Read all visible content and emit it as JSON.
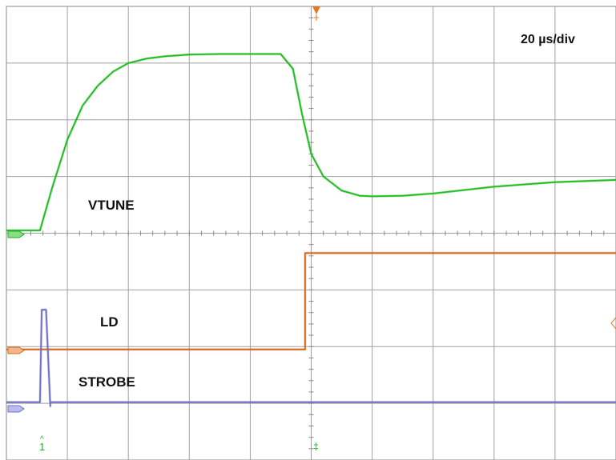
{
  "chart_data": {
    "type": "line",
    "title": "",
    "timebase": "20 µs/div",
    "grid": true,
    "x_unit": "divisions",
    "xlim": [
      0,
      10
    ],
    "ylim": [
      0,
      8
    ],
    "series": [
      {
        "name": "VTUNE",
        "color": "#22bb22",
        "x": [
          0,
          0.55,
          0.75,
          1.0,
          1.25,
          1.5,
          1.75,
          2.0,
          2.3,
          2.6,
          3.0,
          3.5,
          4.0,
          4.5,
          4.7,
          4.85,
          5.0,
          5.2,
          5.5,
          5.8,
          6.0,
          6.5,
          7.0,
          7.5,
          8.0,
          8.5,
          9.0,
          9.5,
          10.0
        ],
        "values": [
          4.05,
          4.05,
          4.8,
          5.65,
          6.25,
          6.6,
          6.85,
          7.0,
          7.08,
          7.12,
          7.15,
          7.16,
          7.16,
          7.16,
          6.9,
          6.1,
          5.4,
          5.0,
          4.75,
          4.66,
          4.65,
          4.66,
          4.7,
          4.76,
          4.82,
          4.86,
          4.9,
          4.92,
          4.94
        ]
      },
      {
        "name": "LD",
        "color": "#d2691e",
        "x": [
          0,
          4.9,
          4.9,
          10
        ],
        "values": [
          1.95,
          1.95,
          3.65,
          3.65
        ]
      },
      {
        "name": "STROBE",
        "color": "#6f70c8",
        "x": [
          0,
          0.55,
          0.58,
          0.65,
          0.72,
          0.72,
          10
        ],
        "values": [
          1.02,
          1.02,
          2.65,
          2.65,
          0.95,
          1.02,
          1.02
        ]
      }
    ],
    "channel_markers": [
      "1"
    ]
  }
}
